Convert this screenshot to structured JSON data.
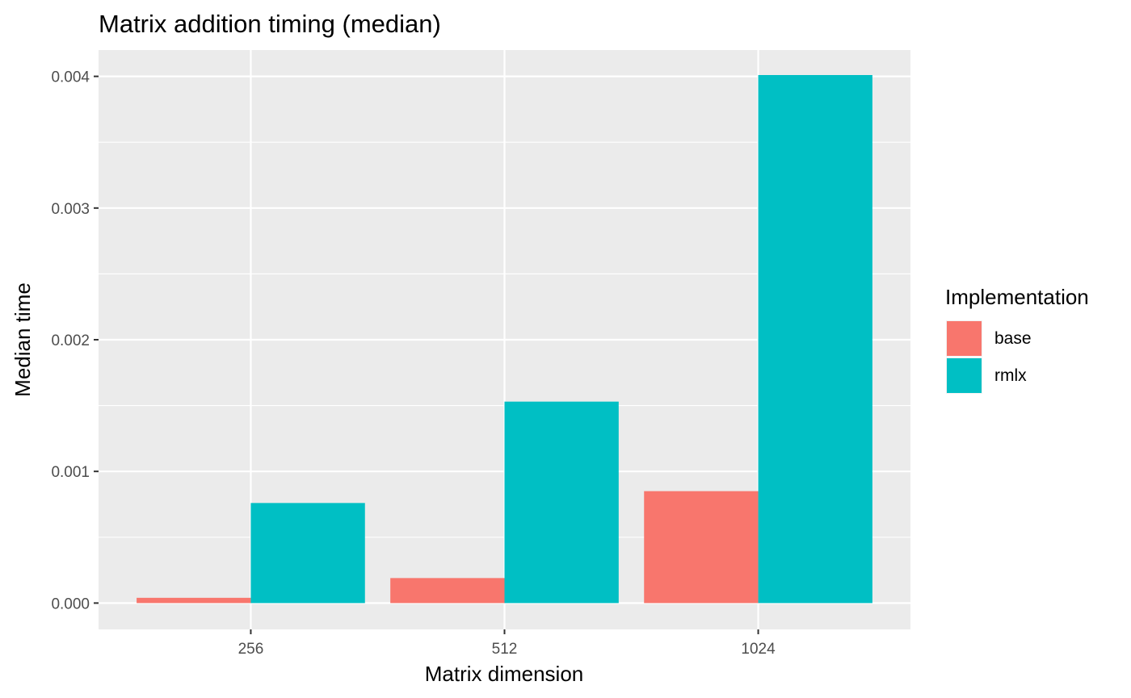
{
  "chart_data": {
    "type": "bar",
    "title": "Matrix addition timing (median)",
    "xlabel": "Matrix dimension",
    "ylabel": "Median time",
    "categories": [
      "256",
      "512",
      "1024"
    ],
    "series": [
      {
        "name": "base",
        "color": "#F8766D",
        "values": [
          4e-05,
          0.00019,
          0.00085
        ]
      },
      {
        "name": "rmlx",
        "color": "#00BFC4",
        "values": [
          0.00076,
          0.00153,
          0.00401
        ]
      }
    ],
    "ylim": [
      -0.0002,
      0.0042
    ],
    "yticks": [
      0,
      0.001,
      0.002,
      0.003,
      0.004
    ],
    "ytick_labels": [
      "0.000",
      "0.001",
      "0.002",
      "0.003",
      "0.004"
    ],
    "legend_title": "Implementation",
    "legend_position": "right",
    "grid": true,
    "panel_background": "#EBEBEB",
    "grid_color": "#FFFFFF"
  }
}
